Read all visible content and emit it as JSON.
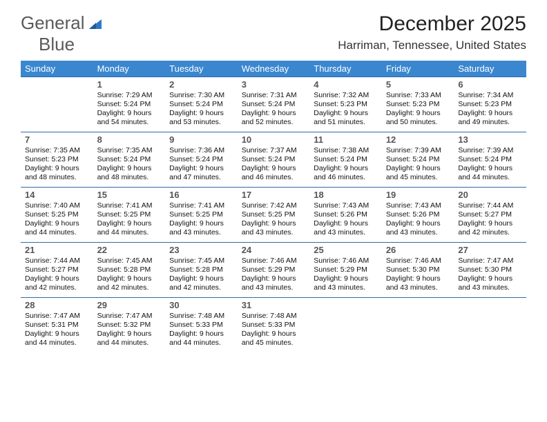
{
  "logo": {
    "text1": "General",
    "text2": "Blue"
  },
  "title": "December 2025",
  "location": "Harriman, Tennessee, United States",
  "colors": {
    "header_bg": "#3a87cf",
    "header_text": "#ffffff",
    "rule": "#2f6aa8",
    "logo_gray": "#5a5a5a",
    "logo_blue": "#2f78c4"
  },
  "dayHeaders": [
    "Sunday",
    "Monday",
    "Tuesday",
    "Wednesday",
    "Thursday",
    "Friday",
    "Saturday"
  ],
  "weeks": [
    [
      null,
      {
        "n": "1",
        "sr": "7:29 AM",
        "ss": "5:24 PM",
        "dl": "9 hours and 54 minutes."
      },
      {
        "n": "2",
        "sr": "7:30 AM",
        "ss": "5:24 PM",
        "dl": "9 hours and 53 minutes."
      },
      {
        "n": "3",
        "sr": "7:31 AM",
        "ss": "5:24 PM",
        "dl": "9 hours and 52 minutes."
      },
      {
        "n": "4",
        "sr": "7:32 AM",
        "ss": "5:23 PM",
        "dl": "9 hours and 51 minutes."
      },
      {
        "n": "5",
        "sr": "7:33 AM",
        "ss": "5:23 PM",
        "dl": "9 hours and 50 minutes."
      },
      {
        "n": "6",
        "sr": "7:34 AM",
        "ss": "5:23 PM",
        "dl": "9 hours and 49 minutes."
      }
    ],
    [
      {
        "n": "7",
        "sr": "7:35 AM",
        "ss": "5:23 PM",
        "dl": "9 hours and 48 minutes."
      },
      {
        "n": "8",
        "sr": "7:35 AM",
        "ss": "5:24 PM",
        "dl": "9 hours and 48 minutes."
      },
      {
        "n": "9",
        "sr": "7:36 AM",
        "ss": "5:24 PM",
        "dl": "9 hours and 47 minutes."
      },
      {
        "n": "10",
        "sr": "7:37 AM",
        "ss": "5:24 PM",
        "dl": "9 hours and 46 minutes."
      },
      {
        "n": "11",
        "sr": "7:38 AM",
        "ss": "5:24 PM",
        "dl": "9 hours and 46 minutes."
      },
      {
        "n": "12",
        "sr": "7:39 AM",
        "ss": "5:24 PM",
        "dl": "9 hours and 45 minutes."
      },
      {
        "n": "13",
        "sr": "7:39 AM",
        "ss": "5:24 PM",
        "dl": "9 hours and 44 minutes."
      }
    ],
    [
      {
        "n": "14",
        "sr": "7:40 AM",
        "ss": "5:25 PM",
        "dl": "9 hours and 44 minutes."
      },
      {
        "n": "15",
        "sr": "7:41 AM",
        "ss": "5:25 PM",
        "dl": "9 hours and 44 minutes."
      },
      {
        "n": "16",
        "sr": "7:41 AM",
        "ss": "5:25 PM",
        "dl": "9 hours and 43 minutes."
      },
      {
        "n": "17",
        "sr": "7:42 AM",
        "ss": "5:25 PM",
        "dl": "9 hours and 43 minutes."
      },
      {
        "n": "18",
        "sr": "7:43 AM",
        "ss": "5:26 PM",
        "dl": "9 hours and 43 minutes."
      },
      {
        "n": "19",
        "sr": "7:43 AM",
        "ss": "5:26 PM",
        "dl": "9 hours and 43 minutes."
      },
      {
        "n": "20",
        "sr": "7:44 AM",
        "ss": "5:27 PM",
        "dl": "9 hours and 42 minutes."
      }
    ],
    [
      {
        "n": "21",
        "sr": "7:44 AM",
        "ss": "5:27 PM",
        "dl": "9 hours and 42 minutes."
      },
      {
        "n": "22",
        "sr": "7:45 AM",
        "ss": "5:28 PM",
        "dl": "9 hours and 42 minutes."
      },
      {
        "n": "23",
        "sr": "7:45 AM",
        "ss": "5:28 PM",
        "dl": "9 hours and 42 minutes."
      },
      {
        "n": "24",
        "sr": "7:46 AM",
        "ss": "5:29 PM",
        "dl": "9 hours and 43 minutes."
      },
      {
        "n": "25",
        "sr": "7:46 AM",
        "ss": "5:29 PM",
        "dl": "9 hours and 43 minutes."
      },
      {
        "n": "26",
        "sr": "7:46 AM",
        "ss": "5:30 PM",
        "dl": "9 hours and 43 minutes."
      },
      {
        "n": "27",
        "sr": "7:47 AM",
        "ss": "5:30 PM",
        "dl": "9 hours and 43 minutes."
      }
    ],
    [
      {
        "n": "28",
        "sr": "7:47 AM",
        "ss": "5:31 PM",
        "dl": "9 hours and 44 minutes."
      },
      {
        "n": "29",
        "sr": "7:47 AM",
        "ss": "5:32 PM",
        "dl": "9 hours and 44 minutes."
      },
      {
        "n": "30",
        "sr": "7:48 AM",
        "ss": "5:33 PM",
        "dl": "9 hours and 44 minutes."
      },
      {
        "n": "31",
        "sr": "7:48 AM",
        "ss": "5:33 PM",
        "dl": "9 hours and 45 minutes."
      },
      null,
      null,
      null
    ]
  ],
  "labels": {
    "sunrise": "Sunrise: ",
    "sunset": "Sunset: ",
    "daylight": "Daylight: "
  }
}
